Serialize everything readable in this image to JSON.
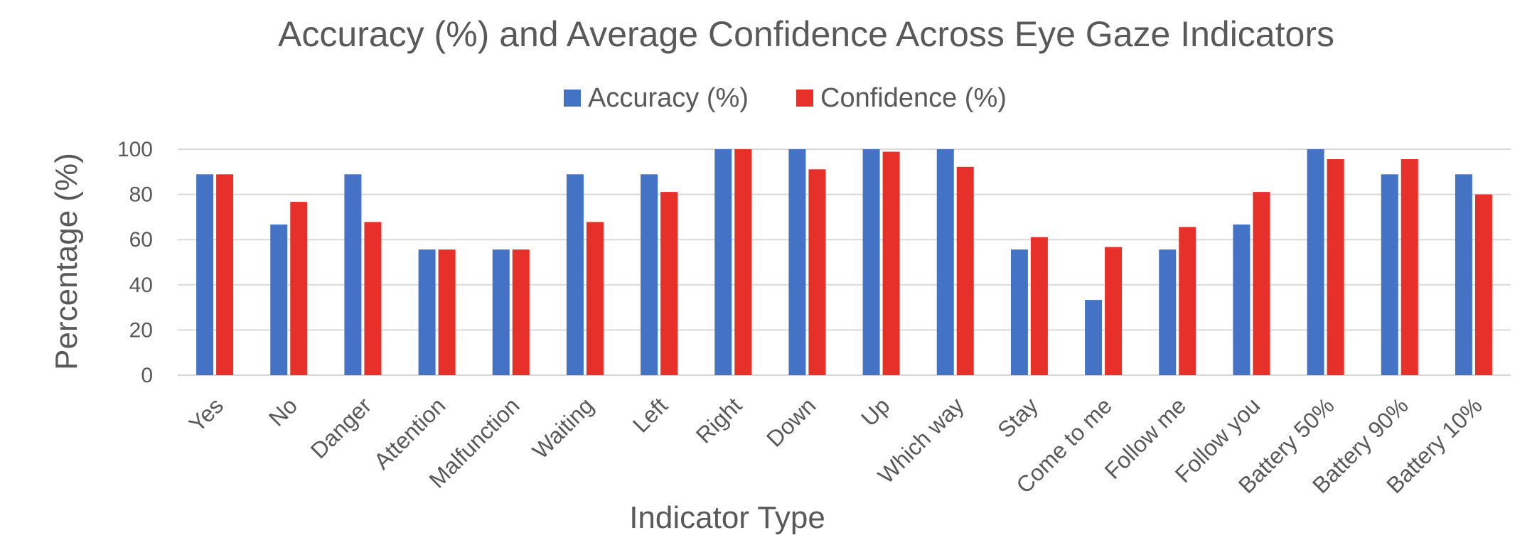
{
  "chart_data": {
    "type": "bar",
    "title": "Accuracy (%) and Average Confidence Across Eye Gaze Indicators",
    "xlabel": "Indicator Type",
    "ylabel": "Percentage (%)",
    "ylim": [
      0,
      100
    ],
    "yticks": [
      0,
      20,
      40,
      60,
      80,
      100
    ],
    "grid": true,
    "legend": "top-center",
    "categories": [
      "Yes",
      "No",
      "Danger",
      "Attention",
      "Malfunction",
      "Waiting",
      "Left",
      "Right",
      "Down",
      "Up",
      "Which way",
      "Stay",
      "Come to me",
      "Follow me",
      "Follow you",
      "Battery 50%",
      "Battery 90%",
      "Battery 10%"
    ],
    "series": [
      {
        "name": "Accuracy (%)",
        "color": "#4472c4",
        "values": [
          88.9,
          66.7,
          88.9,
          55.6,
          55.6,
          88.9,
          88.9,
          100,
          100,
          100,
          100,
          55.6,
          33.3,
          55.6,
          66.7,
          100,
          88.9,
          88.9
        ]
      },
      {
        "name": "Confidence (%)",
        "color": "#e8302a",
        "values": [
          88.9,
          76.7,
          67.8,
          55.6,
          55.6,
          67.8,
          81.1,
          100,
          91.1,
          98.9,
          92.2,
          61.1,
          56.7,
          65.6,
          81.1,
          95.6,
          95.6,
          80.0
        ]
      }
    ]
  }
}
